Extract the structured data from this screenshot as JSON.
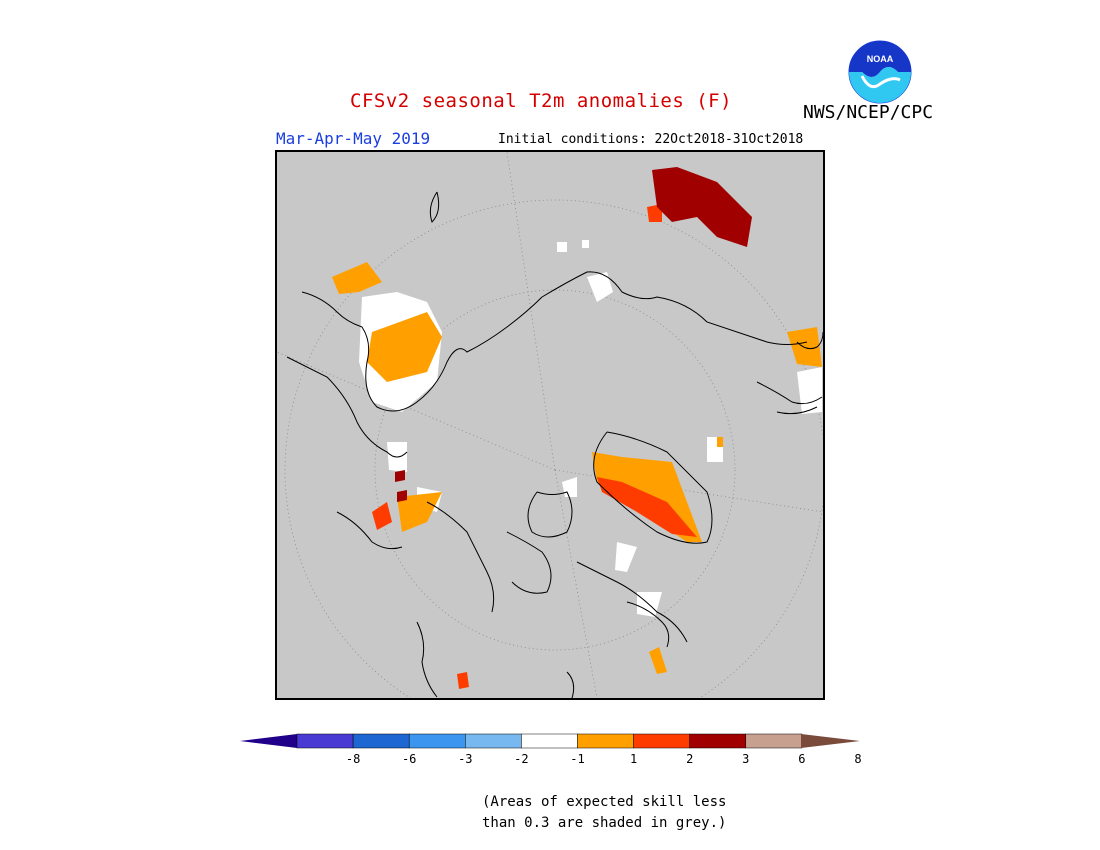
{
  "header": {
    "title": "CFSv2 seasonal T2m anomalies (F)",
    "season": "Mar-Apr-May 2019",
    "initial_conditions": "Initial conditions: 22Oct2018-31Oct2018",
    "agency": "NWS/NCEP/CPC",
    "logo_text": "NOAA"
  },
  "colorbar": {
    "colors": [
      "#20008a",
      "#4a3ad4",
      "#1e66d2",
      "#3c96f0",
      "#78b8f0",
      "#ffffff",
      "#ffa000",
      "#ff3c00",
      "#a00000",
      "#c8a090",
      "#7a4a3a"
    ],
    "labels": [
      "-8",
      "-6",
      "-3",
      "-2",
      "-1",
      "1",
      "2",
      "3",
      "6",
      "8"
    ]
  },
  "note": {
    "line1": "(Areas of expected skill less",
    "line2": "than 0.3 are shaded in grey.)"
  },
  "map": {
    "background_color": "#c8c8c8",
    "projection": "north-polar-stereographic"
  }
}
